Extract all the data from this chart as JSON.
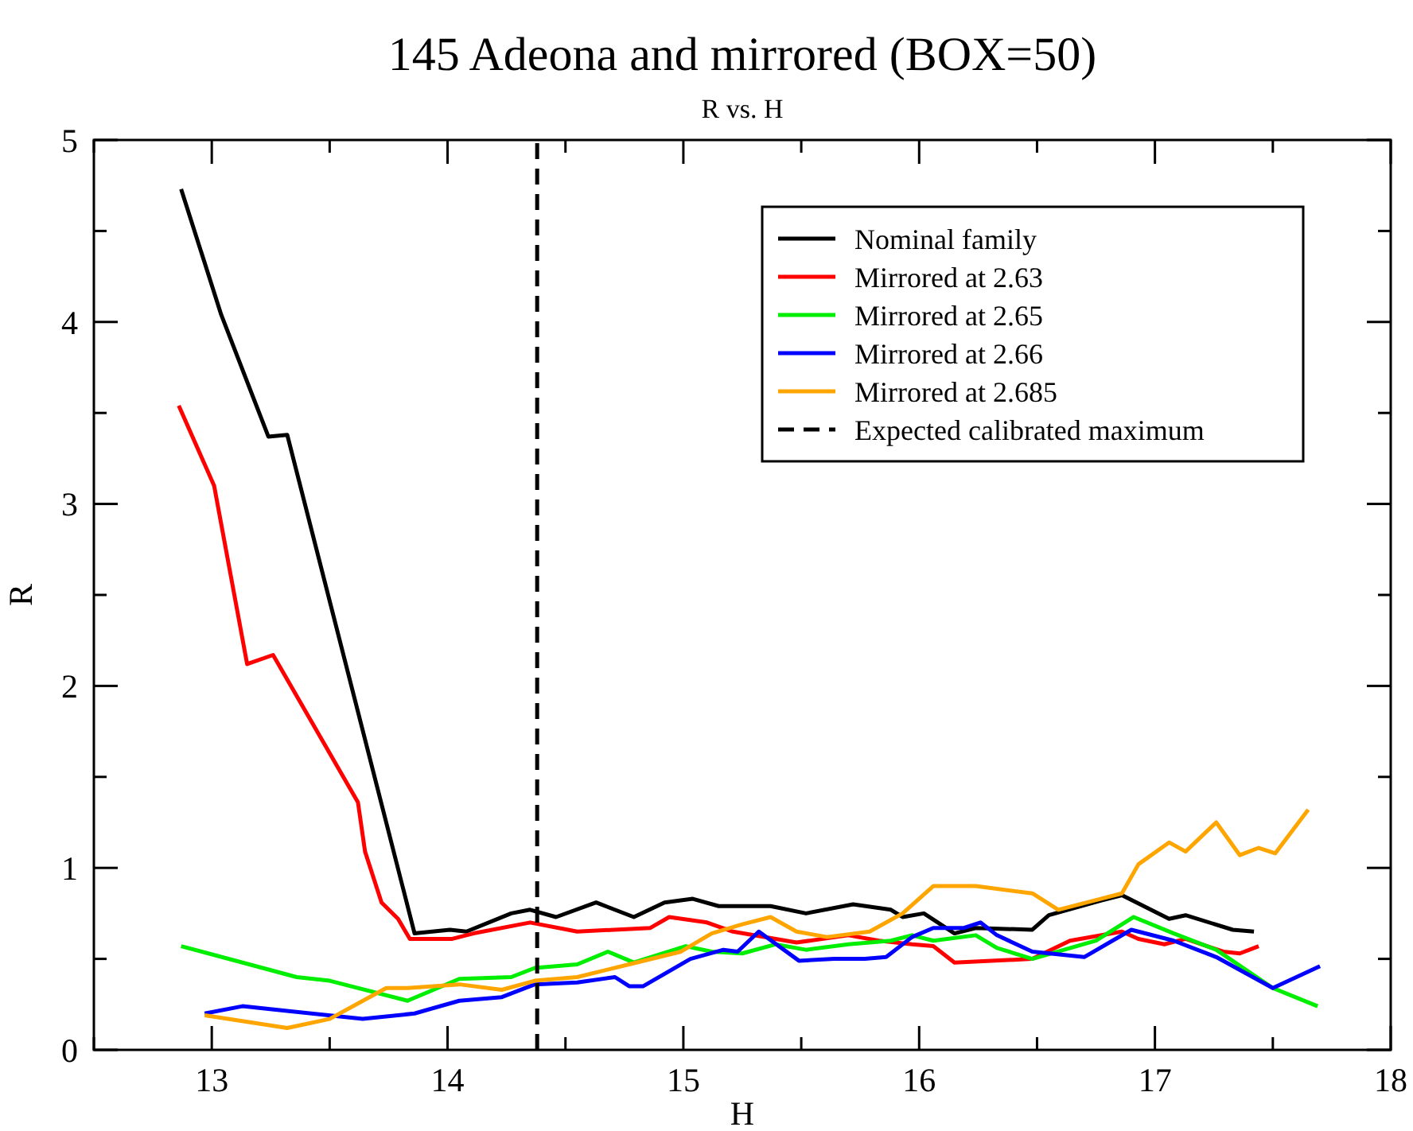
{
  "chart_data": {
    "type": "line",
    "title": "145 Adeona and mirrored (BOX=50)",
    "subtitle": "R vs. H",
    "xlabel": "H",
    "ylabel": "R",
    "xlim": [
      12.5,
      18
    ],
    "ylim": [
      0,
      5
    ],
    "xticks": [
      {
        "value": 12.5,
        "label": null
      },
      13,
      {
        "value": 13.5,
        "label": null
      },
      14,
      {
        "value": 14.5,
        "label": null
      },
      15,
      {
        "value": 15.5,
        "label": null
      },
      16,
      {
        "value": 16.5,
        "label": null
      },
      17,
      {
        "value": 17.5,
        "label": null
      },
      18
    ],
    "yticks": [
      0,
      {
        "value": 0.5,
        "label": null
      },
      1,
      {
        "value": 1.5,
        "label": null
      },
      2,
      {
        "value": 2.5,
        "label": null
      },
      3,
      {
        "value": 3.5,
        "label": null
      },
      4,
      {
        "value": 4.5,
        "label": null
      },
      5
    ],
    "grid": false,
    "legend": "top right",
    "marker": "none",
    "line_style": "solid",
    "series": [
      {
        "name": "Nominal family",
        "color": "#000000",
        "x": [
          12.87,
          13.04,
          13.24,
          13.32,
          13.86,
          14.01,
          14.08,
          14.27,
          14.35,
          14.46,
          14.63,
          14.79,
          14.92,
          15.04,
          15.15,
          15.37,
          15.52,
          15.72,
          15.88,
          15.93,
          16.02,
          16.15,
          16.24,
          16.48,
          16.55,
          16.77,
          16.86,
          17.06,
          17.13,
          17.33,
          17.42
        ],
        "values": [
          4.73,
          4.04,
          3.37,
          3.38,
          0.64,
          0.66,
          0.65,
          0.75,
          0.77,
          0.73,
          0.81,
          0.73,
          0.81,
          0.83,
          0.79,
          0.79,
          0.75,
          0.8,
          0.77,
          0.73,
          0.75,
          0.64,
          0.67,
          0.66,
          0.74,
          0.82,
          0.85,
          0.72,
          0.74,
          0.66,
          0.65
        ]
      },
      {
        "name": "Mirrored at 2.63",
        "color": "#ff0000",
        "x": [
          12.86,
          13.01,
          13.15,
          13.26,
          13.62,
          13.65,
          13.72,
          13.79,
          13.84,
          14.02,
          14.11,
          14.35,
          14.55,
          14.86,
          14.94,
          15.1,
          15.21,
          15.48,
          15.7,
          15.83,
          15.97,
          16.06,
          16.15,
          16.48,
          16.64,
          16.86,
          16.93,
          17.04,
          17.13,
          17.29,
          17.36,
          17.44
        ],
        "values": [
          3.54,
          3.1,
          2.12,
          2.17,
          1.36,
          1.09,
          0.81,
          0.72,
          0.61,
          0.61,
          0.64,
          0.7,
          0.65,
          0.67,
          0.73,
          0.7,
          0.65,
          0.59,
          0.63,
          0.6,
          0.58,
          0.57,
          0.48,
          0.5,
          0.6,
          0.65,
          0.61,
          0.58,
          0.61,
          0.54,
          0.53,
          0.57
        ]
      },
      {
        "name": "Mirrored at 2.65",
        "color": "#00ee00",
        "x": [
          12.87,
          13.36,
          13.5,
          13.83,
          14.05,
          14.27,
          14.37,
          14.55,
          14.68,
          14.79,
          15.01,
          15.12,
          15.25,
          15.39,
          15.52,
          15.7,
          15.88,
          15.97,
          16.06,
          16.24,
          16.33,
          16.48,
          16.75,
          16.91,
          17.08,
          17.26,
          17.5,
          17.69
        ],
        "values": [
          0.57,
          0.4,
          0.38,
          0.27,
          0.39,
          0.4,
          0.45,
          0.47,
          0.54,
          0.48,
          0.57,
          0.54,
          0.53,
          0.58,
          0.55,
          0.58,
          0.6,
          0.63,
          0.6,
          0.63,
          0.56,
          0.5,
          0.6,
          0.73,
          0.64,
          0.55,
          0.34,
          0.24
        ]
      },
      {
        "name": "Mirrored at 2.66",
        "color": "#0000ff",
        "x": [
          12.97,
          13.13,
          13.64,
          13.86,
          14.05,
          14.23,
          14.37,
          14.55,
          14.71,
          14.77,
          14.83,
          15.03,
          15.17,
          15.23,
          15.32,
          15.49,
          15.64,
          15.77,
          15.86,
          15.97,
          16.06,
          16.19,
          16.26,
          16.33,
          16.48,
          16.7,
          16.9,
          17.08,
          17.26,
          17.5,
          17.7
        ],
        "values": [
          0.2,
          0.24,
          0.17,
          0.2,
          0.27,
          0.29,
          0.36,
          0.37,
          0.4,
          0.35,
          0.35,
          0.5,
          0.55,
          0.54,
          0.65,
          0.49,
          0.5,
          0.5,
          0.51,
          0.62,
          0.67,
          0.67,
          0.7,
          0.63,
          0.54,
          0.51,
          0.66,
          0.6,
          0.51,
          0.34,
          0.46
        ]
      },
      {
        "name": "Expected calibrated maximum",
        "color": "#000000",
        "line_style": "dashed",
        "x": [
          14.38,
          14.38
        ],
        "values": [
          0,
          5
        ]
      },
      {
        "name": "Mirrored at 2.685",
        "color": "#ffa500",
        "x": [
          12.97,
          13.32,
          13.5,
          13.74,
          13.83,
          14.05,
          14.23,
          14.37,
          14.55,
          14.77,
          14.99,
          15.12,
          15.25,
          15.37,
          15.48,
          15.61,
          15.79,
          15.93,
          16.06,
          16.24,
          16.48,
          16.59,
          16.77,
          16.86,
          16.93,
          17.06,
          17.13,
          17.26,
          17.36,
          17.44,
          17.51,
          17.65
        ],
        "values": [
          0.19,
          0.12,
          0.17,
          0.34,
          0.34,
          0.36,
          0.33,
          0.38,
          0.4,
          0.47,
          0.54,
          0.64,
          0.69,
          0.73,
          0.65,
          0.62,
          0.65,
          0.75,
          0.9,
          0.9,
          0.86,
          0.77,
          0.83,
          0.86,
          1.02,
          1.14,
          1.09,
          1.25,
          1.07,
          1.11,
          1.08,
          1.32
        ]
      }
    ]
  }
}
